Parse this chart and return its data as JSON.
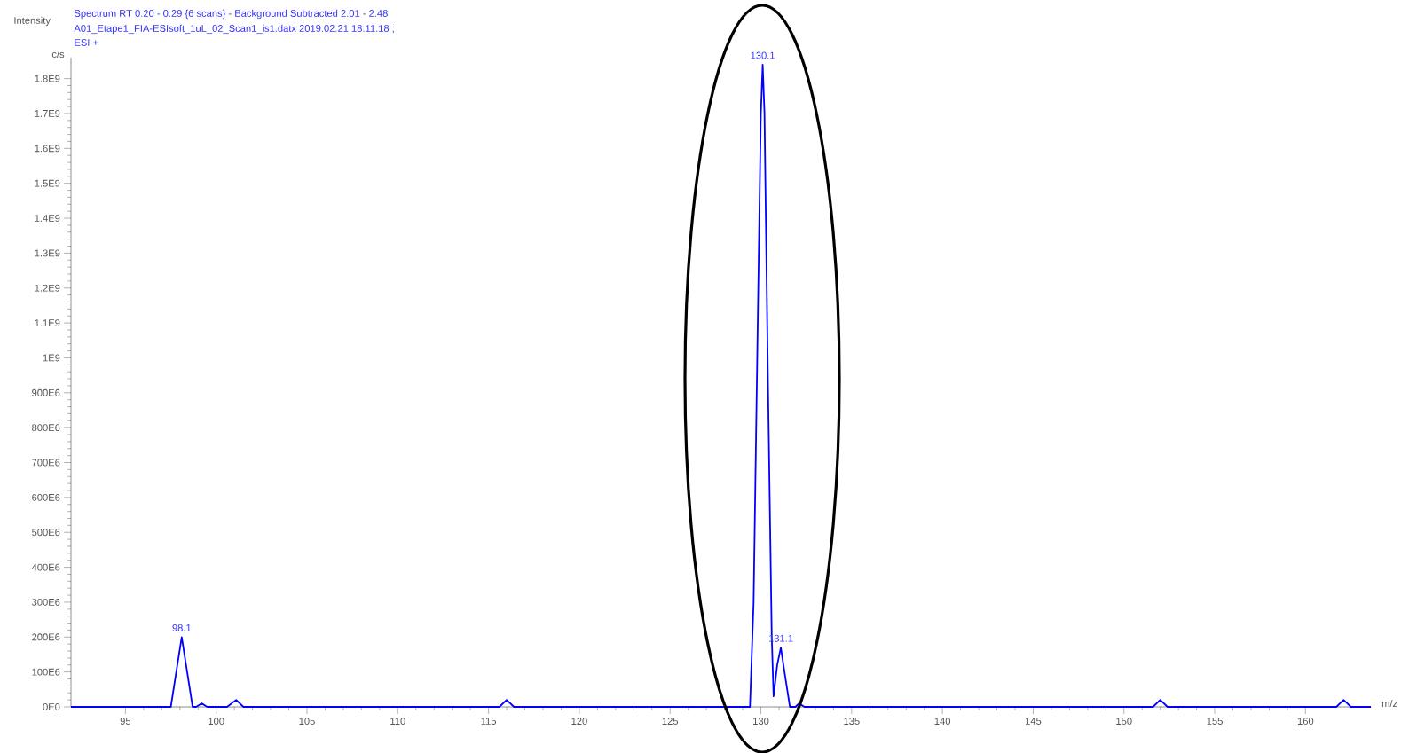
{
  "chart_data": {
    "type": "line",
    "title": "Spectrum RT 0.20 - 0.29 {6 scans} - Background Subtracted 2.01 - 2.48",
    "subtitle": "A01_Etape1_FIA-ESIsoft_1uL_02_Scan1_is1.datx 2019.02.21 18:11:18 ;",
    "xlabel": "m/z",
    "ylabel": "Intensity",
    "annotations": [
      "ESI +",
      "c/s",
      {
        "text": "98.1",
        "x": 98.1,
        "y": 200000000
      },
      {
        "text": "130.1",
        "x": 130.1,
        "y": 1840000000
      },
      {
        "text": "131.1",
        "x": 131.1,
        "y": 170000000
      }
    ],
    "x": [
      92,
      97.5,
      97.8,
      98.1,
      98.4,
      98.7,
      98.9,
      99.2,
      99.5,
      100.6,
      101.1,
      101.5,
      115.6,
      116,
      116.4,
      129.4,
      129.6,
      129.8,
      130,
      130.1,
      130.2,
      130.4,
      130.6,
      130.7,
      130.9,
      131.1,
      131.3,
      131.6,
      131.9,
      132.1,
      132.4,
      151.6,
      152,
      152.4,
      161.7,
      162.1,
      162.5,
      163.6
    ],
    "series": [
      {
        "color": "#0000ff",
        "values": [
          0,
          0,
          100000000,
          200000000,
          100000000,
          0,
          0,
          10000000,
          0,
          0,
          20000000,
          0,
          0,
          20000000,
          0,
          0,
          300000000,
          1000000000,
          1700000000,
          1840000000,
          1700000000,
          900000000,
          200000000,
          30000000,
          120000000,
          170000000,
          100000000,
          0,
          0,
          10000000,
          0,
          0,
          20000000,
          0,
          0,
          20000000,
          0,
          0
        ]
      }
    ],
    "xlim": [
      92,
      163.6
    ],
    "ylim": [
      0,
      1860000000
    ],
    "xticks": [
      95,
      100,
      105,
      110,
      115,
      120,
      125,
      130,
      135,
      140,
      145,
      150,
      155,
      160
    ],
    "yticks": [
      {
        "value": 0,
        "label": "0E0"
      },
      {
        "value": 100000000,
        "label": "100E6"
      },
      {
        "value": 200000000,
        "label": "200E6"
      },
      {
        "value": 300000000,
        "label": "300E6"
      },
      {
        "value": 400000000,
        "label": "400E6"
      },
      {
        "value": 500000000,
        "label": "500E6"
      },
      {
        "value": 600000000,
        "label": "600E6"
      },
      {
        "value": 700000000,
        "label": "700E6"
      },
      {
        "value": 800000000,
        "label": "800E6"
      },
      {
        "value": 900000000,
        "label": "900E6"
      },
      {
        "value": 1000000000,
        "label": "1E9"
      },
      {
        "value": 1100000000,
        "label": "1.1E9"
      },
      {
        "value": 1200000000,
        "label": "1.2E9"
      },
      {
        "value": 1300000000,
        "label": "1.3E9"
      },
      {
        "value": 1400000000,
        "label": "1.4E9"
      },
      {
        "value": 1500000000,
        "label": "1.5E9"
      },
      {
        "value": 1600000000,
        "label": "1.6E9"
      },
      {
        "value": 1700000000,
        "label": "1.7E9"
      },
      {
        "value": 1800000000,
        "label": "1.8E9"
      }
    ]
  }
}
